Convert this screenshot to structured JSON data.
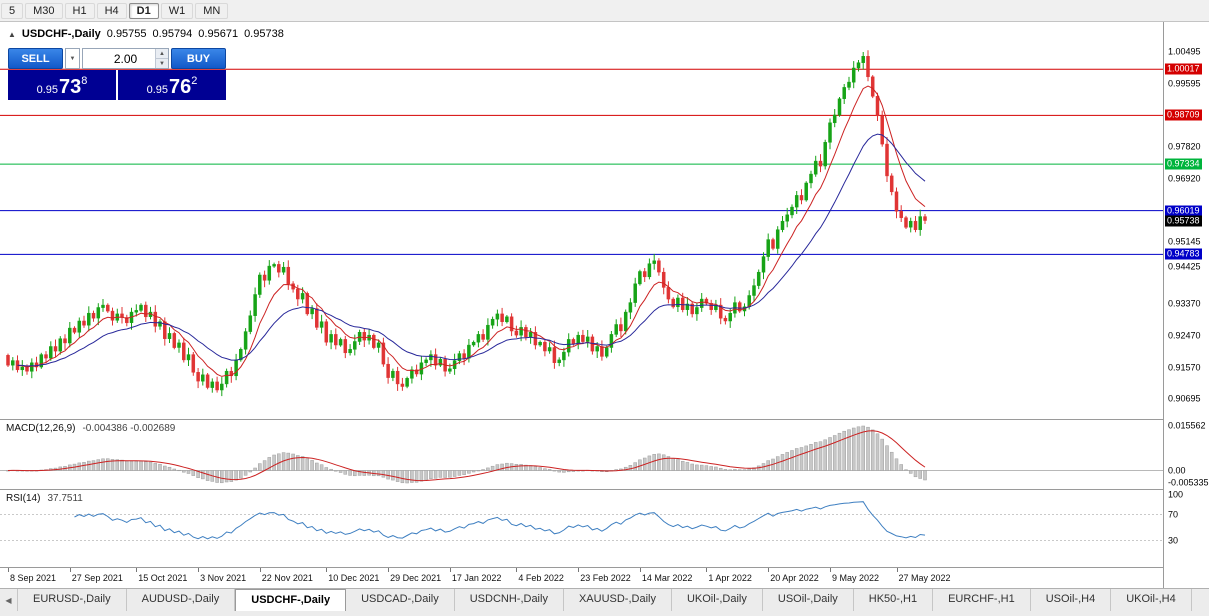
{
  "toolbar": {
    "timeframes": [
      "5",
      "M30",
      "H1",
      "H4",
      "D1",
      "W1",
      "MN"
    ],
    "active": "D1"
  },
  "chart": {
    "collapse_icon": "▲",
    "symbol_line": {
      "symbol": "USDCHF-,Daily",
      "open": "0.95755",
      "high": "0.95794",
      "low": "0.95671",
      "close": "0.95738"
    },
    "trade_panel": {
      "sell_label": "SELL",
      "buy_label": "BUY",
      "volume": "2.00",
      "sell_price": {
        "prefix": "0.95",
        "big": "73",
        "sup": "8"
      },
      "buy_price": {
        "prefix": "0.95",
        "big": "76",
        "sup": "2"
      }
    },
    "colors": {
      "up": "#17a317",
      "down": "#e03434",
      "ma_fast": "#cc2222",
      "ma_slow": "#28289a",
      "histogram": "#c8c8c8",
      "signal": "#cc2222",
      "rsi": "#3e7fc1"
    },
    "levels": [
      {
        "value": 1.00017,
        "label": "1.00017",
        "color": "#d40000"
      },
      {
        "value": 0.98709,
        "label": "0.98709",
        "color": "#d40000"
      },
      {
        "value": 0.97334,
        "label": "0.97334",
        "color": "#00b43c"
      },
      {
        "value": 0.96019,
        "label": "0.96019",
        "color": "#0000c8"
      },
      {
        "value": 0.94783,
        "label": "0.94783",
        "color": "#0000c8"
      }
    ],
    "bid_label": {
      "value": 0.95738,
      "label": "0.95738",
      "color": "#000000"
    },
    "axis_plain": [
      {
        "label": "1.00495",
        "value": 1.00495
      },
      {
        "label": "0.99595",
        "value": 0.99595
      },
      {
        "label": "0.97820",
        "value": 0.9782
      },
      {
        "label": "0.96920",
        "value": 0.9692
      },
      {
        "label": "0.95145",
        "value": 0.95145
      },
      {
        "label": "0.94425",
        "value": 0.94425
      },
      {
        "label": "0.93370",
        "value": 0.9337
      },
      {
        "label": "0.92470",
        "value": 0.9247
      },
      {
        "label": "0.91570",
        "value": 0.9157
      },
      {
        "label": "0.90695",
        "value": 0.90695
      }
    ]
  },
  "macd": {
    "title": "MACD(12,26,9)",
    "values": "-0.004386 -0.002689",
    "axis": {
      "max": "0.015562",
      "zero": "0.00",
      "min": "-0.005335"
    },
    "fast": 12,
    "slow": 26,
    "signal": 9
  },
  "rsi": {
    "title": "RSI(14)",
    "value": "37.7511",
    "period": 14,
    "axis": [
      {
        "label": "100",
        "value": 100
      },
      {
        "label": "70",
        "value": 70
      },
      {
        "label": "30",
        "value": 30
      }
    ],
    "levels": [
      70,
      30
    ]
  },
  "tabs": {
    "scroll_left_icon": "◀",
    "active": "USDCHF-,Daily",
    "items": [
      "EURUSD-,Daily",
      "AUDUSD-,Daily",
      "USDCHF-,Daily",
      "USDCAD-,Daily",
      "USDCNH-,Daily",
      "XAUUSD-,Daily",
      "UKOil-,Daily",
      "USOil-,Daily",
      "HK50-,H1",
      "EURCHF-,H1",
      "USOil-,H4",
      "UKOil-,H4"
    ]
  },
  "chart_data": {
    "type": "candlestick",
    "symbol": "USDCHF",
    "timeframe": "Daily",
    "ylim": [
      0.903,
      1.0118
    ],
    "closes": [
      0.9165,
      0.9178,
      0.9152,
      0.916,
      0.9148,
      0.9172,
      0.916,
      0.9195,
      0.9185,
      0.9218,
      0.9205,
      0.924,
      0.9228,
      0.927,
      0.9258,
      0.929,
      0.9278,
      0.9312,
      0.9298,
      0.9328,
      0.9335,
      0.9318,
      0.9292,
      0.931,
      0.93,
      0.9285,
      0.9315,
      0.932,
      0.9335,
      0.9302,
      0.9315,
      0.9275,
      0.9288,
      0.924,
      0.9255,
      0.9215,
      0.9228,
      0.918,
      0.9195,
      0.9145,
      0.912,
      0.9138,
      0.9102,
      0.9118,
      0.9095,
      0.9112,
      0.9148,
      0.9135,
      0.918,
      0.921,
      0.926,
      0.9305,
      0.9365,
      0.942,
      0.9405,
      0.9445,
      0.945,
      0.9428,
      0.9442,
      0.9395,
      0.938,
      0.9352,
      0.9368,
      0.931,
      0.9325,
      0.9272,
      0.9288,
      0.923,
      0.9252,
      0.9222,
      0.9238,
      0.92,
      0.921,
      0.9232,
      0.9258,
      0.9236,
      0.925,
      0.9215,
      0.9228,
      0.9168,
      0.913,
      0.9148,
      0.9112,
      0.9105,
      0.9128,
      0.9152,
      0.914,
      0.9172,
      0.918,
      0.9195,
      0.9165,
      0.9182,
      0.9148,
      0.9155,
      0.9178,
      0.9198,
      0.9185,
      0.9222,
      0.923,
      0.9252,
      0.9238,
      0.9278,
      0.9295,
      0.931,
      0.9288,
      0.9302,
      0.9262,
      0.925,
      0.9272,
      0.9245,
      0.9258,
      0.9222,
      0.923,
      0.9205,
      0.9215,
      0.9172,
      0.918,
      0.9202,
      0.9238,
      0.9225,
      0.925,
      0.9232,
      0.9245,
      0.9205,
      0.9218,
      0.919,
      0.9215,
      0.9252,
      0.928,
      0.9262,
      0.9315,
      0.9342,
      0.9395,
      0.943,
      0.9415,
      0.9452,
      0.946,
      0.9428,
      0.9385,
      0.9352,
      0.933,
      0.9355,
      0.9322,
      0.9338,
      0.931,
      0.9328,
      0.9352,
      0.934,
      0.9322,
      0.9335,
      0.9298,
      0.929,
      0.9312,
      0.9342,
      0.9318,
      0.933,
      0.9362,
      0.939,
      0.9428,
      0.9472,
      0.952,
      0.9495,
      0.9548,
      0.9572,
      0.959,
      0.9612,
      0.9645,
      0.9632,
      0.968,
      0.9705,
      0.9742,
      0.9728,
      0.9795,
      0.985,
      0.9872,
      0.9918,
      0.995,
      0.9965,
      1.0005,
      1.002,
      1.0038,
      0.998,
      0.9925,
      0.987,
      0.979,
      0.97,
      0.9655,
      0.96,
      0.9582,
      0.9555,
      0.9572,
      0.9548,
      0.9585,
      0.9574
    ],
    "dates": [
      {
        "index": 0,
        "label": "8 Sep 2021"
      },
      {
        "index": 13,
        "label": "27 Sep 2021"
      },
      {
        "index": 27,
        "label": "15 Oct 2021"
      },
      {
        "index": 40,
        "label": "3 Nov 2021"
      },
      {
        "index": 53,
        "label": "22 Nov 2021"
      },
      {
        "index": 67,
        "label": "10 Dec 2021"
      },
      {
        "index": 80,
        "label": "29 Dec 2021"
      },
      {
        "index": 93,
        "label": "17 Jan 2022"
      },
      {
        "index": 107,
        "label": "4 Feb 2022"
      },
      {
        "index": 120,
        "label": "23 Feb 2022"
      },
      {
        "index": 133,
        "label": "14 Mar 2022"
      },
      {
        "index": 147,
        "label": "1 Apr 2022"
      },
      {
        "index": 160,
        "label": "20 Apr 2022"
      },
      {
        "index": 173,
        "label": "9 May 2022"
      },
      {
        "index": 187,
        "label": "27 May 2022"
      }
    ]
  }
}
